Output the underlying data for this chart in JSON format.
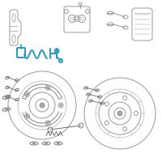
{
  "bg_color": "#ffffff",
  "line_color": "#888888",
  "highlight_color": "#2899b8",
  "dark_color": "#666666",
  "light_gray": "#aaaaaa",
  "fig_size": [
    2.0,
    2.0
  ],
  "dpi": 100
}
